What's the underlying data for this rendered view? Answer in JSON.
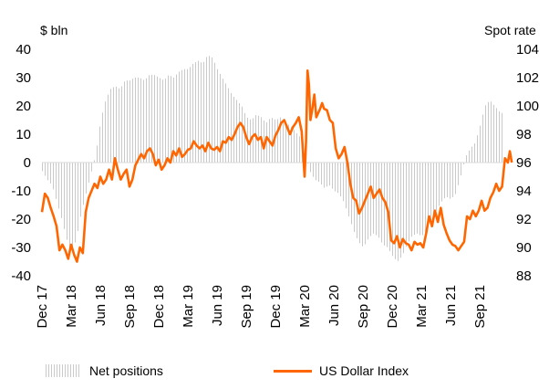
{
  "chart_data": {
    "type": "bar+line",
    "title": "",
    "ylabel_left": "$ bln",
    "ylabel_right": "Spot rate",
    "ylim_left": [
      -40,
      40
    ],
    "ylim_right": [
      88,
      104
    ],
    "yticks_left": [
      "40",
      "30",
      "20",
      "10",
      "0",
      "-10",
      "-20",
      "-30",
      "-40"
    ],
    "yticks_right": [
      "104",
      "102",
      "100",
      "98",
      "96",
      "94",
      "92",
      "90",
      "88"
    ],
    "xticks": [
      {
        "label": "Dec 17",
        "t": 0
      },
      {
        "label": "Mar 18",
        "t": 3
      },
      {
        "label": "Jun 18",
        "t": 6
      },
      {
        "label": "Sep 18",
        "t": 9
      },
      {
        "label": "Dec 18",
        "t": 12
      },
      {
        "label": "Mar 19",
        "t": 15
      },
      {
        "label": "Jun 19",
        "t": 18
      },
      {
        "label": "Sep 19",
        "t": 21
      },
      {
        "label": "Dec 19",
        "t": 24
      },
      {
        "label": "Mar 20",
        "t": 27
      },
      {
        "label": "Jun 20",
        "t": 30
      },
      {
        "label": "Sep 20",
        "t": 33
      },
      {
        "label": "Dec 20",
        "t": 36
      },
      {
        "label": "Mar 21",
        "t": 39
      },
      {
        "label": "Jun 21",
        "t": 42
      },
      {
        "label": "Sep 21",
        "t": 45
      }
    ],
    "t_range": [
      0,
      48
    ],
    "series": [
      {
        "name": "Net positions",
        "kind": "bar",
        "axis": "left",
        "color": "#c9c9c9",
        "points": [
          [
            0,
            -3
          ],
          [
            0.5,
            -6
          ],
          [
            1,
            -8
          ],
          [
            1.5,
            -14
          ],
          [
            2,
            -20
          ],
          [
            2.5,
            -27
          ],
          [
            3,
            -32
          ],
          [
            3.5,
            -27
          ],
          [
            4,
            -18
          ],
          [
            4.5,
            -11
          ],
          [
            5,
            -4
          ],
          [
            5.5,
            3
          ],
          [
            6,
            15
          ],
          [
            6.5,
            22
          ],
          [
            7,
            26
          ],
          [
            7.5,
            27
          ],
          [
            8,
            26
          ],
          [
            8.5,
            29
          ],
          [
            9,
            29
          ],
          [
            9.5,
            30
          ],
          [
            10,
            30
          ],
          [
            10.5,
            29
          ],
          [
            11,
            31
          ],
          [
            11.5,
            31
          ],
          [
            12,
            30
          ],
          [
            12.5,
            29
          ],
          [
            13,
            31
          ],
          [
            13.5,
            30
          ],
          [
            14,
            32
          ],
          [
            14.5,
            33
          ],
          [
            15,
            33
          ],
          [
            15.5,
            35
          ],
          [
            16,
            36
          ],
          [
            16.5,
            35
          ],
          [
            17,
            38
          ],
          [
            17.5,
            37
          ],
          [
            18,
            33
          ],
          [
            18.5,
            30
          ],
          [
            19,
            27
          ],
          [
            19.5,
            24
          ],
          [
            20,
            22
          ],
          [
            20.5,
            20
          ],
          [
            21,
            16
          ],
          [
            21.5,
            15
          ],
          [
            22,
            17
          ],
          [
            22.5,
            16
          ],
          [
            23,
            14
          ],
          [
            23.5,
            16
          ],
          [
            24,
            15
          ],
          [
            24.5,
            16
          ],
          [
            25,
            14
          ],
          [
            25.5,
            13
          ],
          [
            26,
            11
          ],
          [
            26.5,
            9
          ],
          [
            27,
            3
          ],
          [
            27.5,
            -3
          ],
          [
            28,
            -6
          ],
          [
            28.5,
            -7
          ],
          [
            29,
            -9
          ],
          [
            29.5,
            -8
          ],
          [
            30,
            -10
          ],
          [
            30.5,
            -11
          ],
          [
            31,
            -14
          ],
          [
            31.5,
            -19
          ],
          [
            32,
            -24
          ],
          [
            32.5,
            -28
          ],
          [
            33,
            -30
          ],
          [
            33.5,
            -27
          ],
          [
            34,
            -25
          ],
          [
            34.5,
            -26
          ],
          [
            35,
            -29
          ],
          [
            35.5,
            -30
          ],
          [
            36,
            -33
          ],
          [
            36.5,
            -35
          ],
          [
            37,
            -33
          ],
          [
            37.5,
            -29
          ],
          [
            38,
            -26
          ],
          [
            38.5,
            -25
          ],
          [
            39,
            -26
          ],
          [
            39.5,
            -24
          ],
          [
            40,
            -20
          ],
          [
            40.5,
            -17
          ],
          [
            41,
            -14
          ],
          [
            41.5,
            -12
          ],
          [
            42,
            -13
          ],
          [
            42.5,
            -11
          ],
          [
            43,
            -5
          ],
          [
            43.5,
            2
          ],
          [
            44,
            5
          ],
          [
            44.5,
            7
          ],
          [
            45,
            13
          ],
          [
            45.5,
            20
          ],
          [
            46,
            22
          ],
          [
            46.5,
            20
          ],
          [
            47,
            18
          ],
          [
            47.5,
            17
          ]
        ]
      },
      {
        "name": "US Dollar Index",
        "kind": "line",
        "axis": "right",
        "color": "#ff6600",
        "points": [
          [
            0,
            92.5
          ],
          [
            0.3,
            93.8
          ],
          [
            0.6,
            93.5
          ],
          [
            0.9,
            92.8
          ],
          [
            1.2,
            92.2
          ],
          [
            1.5,
            91.5
          ],
          [
            1.8,
            89.8
          ],
          [
            2.1,
            90.2
          ],
          [
            2.4,
            89.8
          ],
          [
            2.7,
            89.2
          ],
          [
            3,
            90.2
          ],
          [
            3.3,
            89.5
          ],
          [
            3.6,
            89.0
          ],
          [
            3.9,
            90.0
          ],
          [
            4.2,
            89.6
          ],
          [
            4.5,
            92.5
          ],
          [
            4.8,
            93.5
          ],
          [
            5.1,
            94.0
          ],
          [
            5.4,
            94.5
          ],
          [
            5.7,
            94.2
          ],
          [
            6,
            95.0
          ],
          [
            6.3,
            94.5
          ],
          [
            6.6,
            94.8
          ],
          [
            6.9,
            95.5
          ],
          [
            7.2,
            94.8
          ],
          [
            7.5,
            96.3
          ],
          [
            7.8,
            95.5
          ],
          [
            8.1,
            94.8
          ],
          [
            8.4,
            95.2
          ],
          [
            8.7,
            95.5
          ],
          [
            9,
            94.3
          ],
          [
            9.3,
            94.8
          ],
          [
            9.6,
            95.8
          ],
          [
            9.9,
            96.2
          ],
          [
            10.2,
            96.6
          ],
          [
            10.5,
            96.3
          ],
          [
            10.8,
            96.8
          ],
          [
            11.1,
            97.0
          ],
          [
            11.4,
            96.6
          ],
          [
            11.7,
            95.8
          ],
          [
            12,
            96.2
          ],
          [
            12.3,
            95.5
          ],
          [
            12.6,
            95.8
          ],
          [
            12.9,
            96.3
          ],
          [
            13.2,
            96.0
          ],
          [
            13.5,
            96.8
          ],
          [
            13.8,
            96.5
          ],
          [
            14.1,
            97.0
          ],
          [
            14.4,
            96.4
          ],
          [
            14.7,
            96.6
          ],
          [
            15,
            96.9
          ],
          [
            15.3,
            97.0
          ],
          [
            15.6,
            97.5
          ],
          [
            15.9,
            97.2
          ],
          [
            16.2,
            97.0
          ],
          [
            16.5,
            97.2
          ],
          [
            16.8,
            96.8
          ],
          [
            17.1,
            97.4
          ],
          [
            17.4,
            97.0
          ],
          [
            17.7,
            96.9
          ],
          [
            18,
            97.1
          ],
          [
            18.3,
            96.8
          ],
          [
            18.6,
            97.5
          ],
          [
            18.9,
            97.4
          ],
          [
            19.2,
            97.8
          ],
          [
            19.5,
            97.6
          ],
          [
            19.8,
            98.0
          ],
          [
            20.1,
            98.5
          ],
          [
            20.4,
            98.8
          ],
          [
            20.7,
            98.5
          ],
          [
            21,
            97.8
          ],
          [
            21.3,
            97.3
          ],
          [
            21.6,
            97.8
          ],
          [
            21.9,
            98.0
          ],
          [
            22.2,
            97.6
          ],
          [
            22.5,
            97.8
          ],
          [
            22.8,
            97.0
          ],
          [
            23.1,
            97.8
          ],
          [
            23.4,
            97.5
          ],
          [
            23.7,
            97.2
          ],
          [
            24,
            97.9
          ],
          [
            24.3,
            98.3
          ],
          [
            24.6,
            98.8
          ],
          [
            24.9,
            99.0
          ],
          [
            25.2,
            98.5
          ],
          [
            25.5,
            98.0
          ],
          [
            25.8,
            98.5
          ],
          [
            26.1,
            98.8
          ],
          [
            26.4,
            99.2
          ],
          [
            26.7,
            98.2
          ],
          [
            27,
            95.0
          ],
          [
            27.15,
            97.5
          ],
          [
            27.3,
            102.5
          ],
          [
            27.45,
            101.5
          ],
          [
            27.6,
            99.0
          ],
          [
            27.8,
            99.8
          ],
          [
            28,
            100.8
          ],
          [
            28.2,
            99.2
          ],
          [
            28.4,
            99.5
          ],
          [
            28.6,
            99.8
          ],
          [
            28.8,
            100.2
          ],
          [
            29,
            99.8
          ],
          [
            29.3,
            99.7
          ],
          [
            29.6,
            99.0
          ],
          [
            29.9,
            98.8
          ],
          [
            30.2,
            97.0
          ],
          [
            30.5,
            96.3
          ],
          [
            30.8,
            96.6
          ],
          [
            31.1,
            97.1
          ],
          [
            31.4,
            96.0
          ],
          [
            31.7,
            94.5
          ],
          [
            32,
            93.5
          ],
          [
            32.3,
            93.3
          ],
          [
            32.6,
            92.4
          ],
          [
            32.9,
            92.8
          ],
          [
            33.2,
            93.3
          ],
          [
            33.5,
            93.8
          ],
          [
            33.8,
            94.3
          ],
          [
            34.1,
            93.5
          ],
          [
            34.4,
            93.8
          ],
          [
            34.7,
            94.1
          ],
          [
            35,
            93.5
          ],
          [
            35.3,
            93.2
          ],
          [
            35.6,
            92.5
          ],
          [
            35.9,
            90.5
          ],
          [
            36.2,
            90.3
          ],
          [
            36.5,
            90.8
          ],
          [
            36.8,
            90.0
          ],
          [
            37.1,
            90.6
          ],
          [
            37.4,
            90.3
          ],
          [
            37.7,
            90.2
          ],
          [
            38,
            89.8
          ],
          [
            38.3,
            90.4
          ],
          [
            38.6,
            90.2
          ],
          [
            38.9,
            90.3
          ],
          [
            39.2,
            90.0
          ],
          [
            39.5,
            91.0
          ],
          [
            39.8,
            92.2
          ],
          [
            40.1,
            91.5
          ],
          [
            40.4,
            92.6
          ],
          [
            40.7,
            91.8
          ],
          [
            41,
            92.8
          ],
          [
            41.3,
            91.6
          ],
          [
            41.6,
            91.0
          ],
          [
            41.9,
            90.5
          ],
          [
            42.2,
            90.2
          ],
          [
            42.5,
            90.1
          ],
          [
            42.8,
            89.8
          ],
          [
            43.1,
            90.1
          ],
          [
            43.4,
            90.4
          ],
          [
            43.7,
            92.2
          ],
          [
            44,
            92.0
          ],
          [
            44.3,
            92.6
          ],
          [
            44.6,
            92.2
          ],
          [
            44.9,
            92.6
          ],
          [
            45.2,
            93.3
          ],
          [
            45.5,
            92.6
          ],
          [
            45.8,
            92.8
          ],
          [
            46.1,
            93.5
          ],
          [
            46.4,
            93.9
          ],
          [
            46.7,
            94.5
          ],
          [
            47,
            94.0
          ],
          [
            47.3,
            94.3
          ],
          [
            47.6,
            96.3
          ],
          [
            47.9,
            96.0
          ],
          [
            48.1,
            96.8
          ],
          [
            48.3,
            96.0
          ]
        ]
      }
    ],
    "legend": [
      {
        "label": "Net positions",
        "kind": "bar"
      },
      {
        "label": "US Dollar Index",
        "kind": "line"
      }
    ],
    "legend_position": "bottom",
    "grid": false
  }
}
